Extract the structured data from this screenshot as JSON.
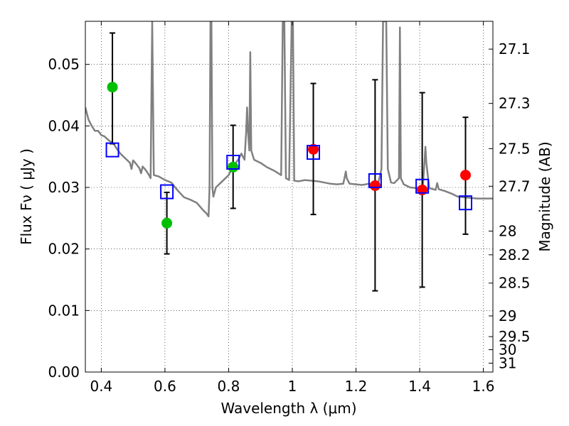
{
  "chart_data": {
    "type": "scatter",
    "xlabel": "Wavelength  λ (μm)",
    "ylabel": "Flux  Fν ( μJy )",
    "y2label": "Magnitude (AB)",
    "xlim": [
      0.35,
      1.63
    ],
    "ylim": [
      0.0,
      0.057
    ],
    "x_ticks": [
      0.4,
      0.6,
      0.8,
      1.0,
      1.2,
      1.4,
      1.6
    ],
    "x_tick_labels": [
      "0.4",
      "0.6",
      "0.8",
      "1",
      "1.2",
      "1.4",
      "1.6"
    ],
    "y_ticks": [
      0.0,
      0.01,
      0.02,
      0.03,
      0.04,
      0.05
    ],
    "y_tick_labels": [
      "0.00",
      "0.01",
      "0.02",
      "0.03",
      "0.04",
      "0.05"
    ],
    "y2_ticks": [
      {
        "label": "27.1",
        "mag": 27.1
      },
      {
        "label": "27.3",
        "mag": 27.3
      },
      {
        "label": "27.5",
        "mag": 27.5
      },
      {
        "label": "27.7",
        "mag": 27.7
      },
      {
        "label": "28",
        "mag": 28.0
      },
      {
        "label": "28.2",
        "mag": 28.2
      },
      {
        "label": "28.5",
        "mag": 28.5
      },
      {
        "label": "29",
        "mag": 29.0
      },
      {
        "label": "29.5",
        "mag": 29.5
      },
      {
        "label": "30",
        "mag": 30.0
      },
      {
        "label": "31",
        "mag": 31.0
      }
    ],
    "grid": true,
    "colors": {
      "model": "#808080",
      "green": "#00c000",
      "red": "#ff0000",
      "square": "#0000ff",
      "errorbar": "#000000"
    },
    "series": [
      {
        "kind": "points",
        "marker": "circle",
        "color": "green",
        "points": [
          {
            "x": 0.435,
            "y": 0.0463
          },
          {
            "x": 0.606,
            "y": 0.0242
          },
          {
            "x": 0.814,
            "y": 0.0333
          }
        ]
      },
      {
        "kind": "points",
        "marker": "circle",
        "color": "red",
        "points": [
          {
            "x": 1.066,
            "y": 0.0362
          },
          {
            "x": 1.26,
            "y": 0.0303
          },
          {
            "x": 1.408,
            "y": 0.0296
          },
          {
            "x": 1.544,
            "y": 0.032
          }
        ]
      },
      {
        "kind": "errorbars",
        "points": [
          {
            "x": 0.435,
            "low": 0.0371,
            "high": 0.0551
          },
          {
            "x": 0.606,
            "low": 0.0192,
            "high": 0.0292
          },
          {
            "x": 0.814,
            "low": 0.0266,
            "high": 0.0401
          },
          {
            "x": 1.066,
            "low": 0.0256,
            "high": 0.0469
          },
          {
            "x": 1.26,
            "low": 0.0132,
            "high": 0.0475
          },
          {
            "x": 1.408,
            "low": 0.0138,
            "high": 0.0454
          },
          {
            "x": 1.544,
            "low": 0.0224,
            "high": 0.0414
          }
        ]
      },
      {
        "kind": "points",
        "marker": "open-square",
        "color": "square",
        "points": [
          {
            "x": 0.435,
            "y": 0.0361
          },
          {
            "x": 0.606,
            "y": 0.0293
          },
          {
            "x": 0.814,
            "y": 0.0341
          },
          {
            "x": 1.066,
            "y": 0.0357
          },
          {
            "x": 1.26,
            "y": 0.0311
          },
          {
            "x": 1.408,
            "y": 0.0302
          },
          {
            "x": 1.544,
            "y": 0.0275
          }
        ]
      },
      {
        "kind": "line",
        "color": "model",
        "points": [
          [
            0.35,
            0.043
          ],
          [
            0.36,
            0.041
          ],
          [
            0.37,
            0.04
          ],
          [
            0.38,
            0.0392
          ],
          [
            0.39,
            0.0392
          ],
          [
            0.4,
            0.0385
          ],
          [
            0.41,
            0.0383
          ],
          [
            0.42,
            0.0378
          ],
          [
            0.43,
            0.0374
          ],
          [
            0.44,
            0.037
          ],
          [
            0.45,
            0.0362
          ],
          [
            0.46,
            0.0355
          ],
          [
            0.47,
            0.035
          ],
          [
            0.48,
            0.0345
          ],
          [
            0.49,
            0.034
          ],
          [
            0.495,
            0.033
          ],
          [
            0.5,
            0.0344
          ],
          [
            0.51,
            0.0338
          ],
          [
            0.52,
            0.0331
          ],
          [
            0.525,
            0.0323
          ],
          [
            0.53,
            0.0334
          ],
          [
            0.54,
            0.0328
          ],
          [
            0.55,
            0.032
          ],
          [
            0.555,
            0.0315
          ],
          [
            0.558,
            0.047
          ],
          [
            0.56,
            0.057
          ],
          [
            0.562,
            0.047
          ],
          [
            0.565,
            0.032
          ],
          [
            0.58,
            0.0318
          ],
          [
            0.6,
            0.0312
          ],
          [
            0.62,
            0.0308
          ],
          [
            0.64,
            0.0295
          ],
          [
            0.66,
            0.0284
          ],
          [
            0.68,
            0.028
          ],
          [
            0.7,
            0.0275
          ],
          [
            0.72,
            0.0263
          ],
          [
            0.73,
            0.0258
          ],
          [
            0.737,
            0.0253
          ],
          [
            0.74,
            0.03
          ],
          [
            0.743,
            0.057
          ],
          [
            0.746,
            0.057
          ],
          [
            0.749,
            0.03
          ],
          [
            0.752,
            0.0285
          ],
          [
            0.76,
            0.03
          ],
          [
            0.78,
            0.031
          ],
          [
            0.8,
            0.032
          ],
          [
            0.81,
            0.033
          ],
          [
            0.82,
            0.0338
          ],
          [
            0.83,
            0.0345
          ],
          [
            0.84,
            0.0355
          ],
          [
            0.85,
            0.0345
          ],
          [
            0.855,
            0.039
          ],
          [
            0.858,
            0.043
          ],
          [
            0.861,
            0.039
          ],
          [
            0.865,
            0.036
          ],
          [
            0.868,
            0.052
          ],
          [
            0.871,
            0.036
          ],
          [
            0.88,
            0.0345
          ],
          [
            0.9,
            0.034
          ],
          [
            0.92,
            0.0333
          ],
          [
            0.94,
            0.0328
          ],
          [
            0.95,
            0.0325
          ],
          [
            0.965,
            0.032
          ],
          [
            0.97,
            0.057
          ],
          [
            0.975,
            0.057
          ],
          [
            0.98,
            0.0315
          ],
          [
            0.99,
            0.0312
          ],
          [
            0.998,
            0.057
          ],
          [
            1.002,
            0.057
          ],
          [
            1.006,
            0.0311
          ],
          [
            1.02,
            0.031
          ],
          [
            1.04,
            0.0312
          ],
          [
            1.06,
            0.0311
          ],
          [
            1.08,
            0.031
          ],
          [
            1.1,
            0.0308
          ],
          [
            1.12,
            0.0306
          ],
          [
            1.14,
            0.0305
          ],
          [
            1.16,
            0.0306
          ],
          [
            1.165,
            0.0318
          ],
          [
            1.168,
            0.0326
          ],
          [
            1.171,
            0.0315
          ],
          [
            1.18,
            0.0306
          ],
          [
            1.2,
            0.0305
          ],
          [
            1.22,
            0.0304
          ],
          [
            1.24,
            0.0306
          ],
          [
            1.26,
            0.0305
          ],
          [
            1.27,
            0.0307
          ],
          [
            1.28,
            0.033
          ],
          [
            1.285,
            0.057
          ],
          [
            1.295,
            0.057
          ],
          [
            1.3,
            0.033
          ],
          [
            1.31,
            0.0308
          ],
          [
            1.32,
            0.0307
          ],
          [
            1.335,
            0.0315
          ],
          [
            1.338,
            0.056
          ],
          [
            1.341,
            0.0315
          ],
          [
            1.35,
            0.0305
          ],
          [
            1.37,
            0.03
          ],
          [
            1.39,
            0.0299
          ],
          [
            1.4,
            0.03
          ],
          [
            1.41,
            0.0302
          ],
          [
            1.415,
            0.034
          ],
          [
            1.418,
            0.0366
          ],
          [
            1.421,
            0.034
          ],
          [
            1.43,
            0.0299
          ],
          [
            1.45,
            0.0296
          ],
          [
            1.455,
            0.0307
          ],
          [
            1.46,
            0.0297
          ],
          [
            1.48,
            0.0294
          ],
          [
            1.5,
            0.029
          ],
          [
            1.52,
            0.0285
          ],
          [
            1.54,
            0.0284
          ],
          [
            1.56,
            0.0283
          ],
          [
            1.58,
            0.0282
          ],
          [
            1.6,
            0.0282
          ],
          [
            1.63,
            0.0282
          ]
        ]
      }
    ]
  }
}
